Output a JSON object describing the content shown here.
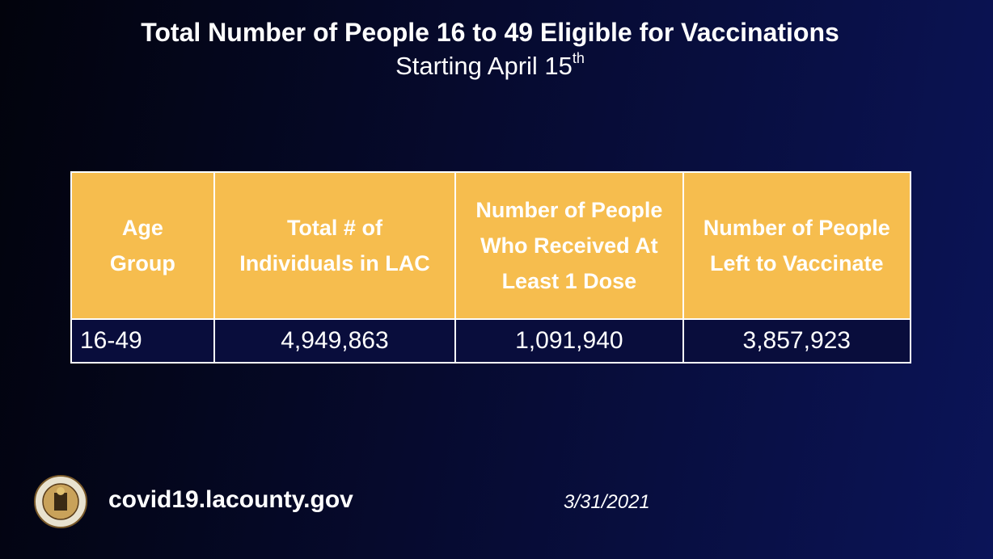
{
  "header": {
    "title": "Total Number of People 16 to 49 Eligible for Vaccinations",
    "subtitle": "Starting April 15",
    "subtitle_sup": "th"
  },
  "table": {
    "columns": [
      "Age Group",
      "Total # of Individuals in LAC",
      "Number of People Who Received At Least 1 Dose",
      "Number of People Left to Vaccinate"
    ],
    "rows": [
      [
        "16-49",
        "4,949,863",
        "1,091,940",
        "3,857,923"
      ]
    ]
  },
  "footer": {
    "url": "covid19.lacounty.gov",
    "date": "3/31/2021"
  }
}
